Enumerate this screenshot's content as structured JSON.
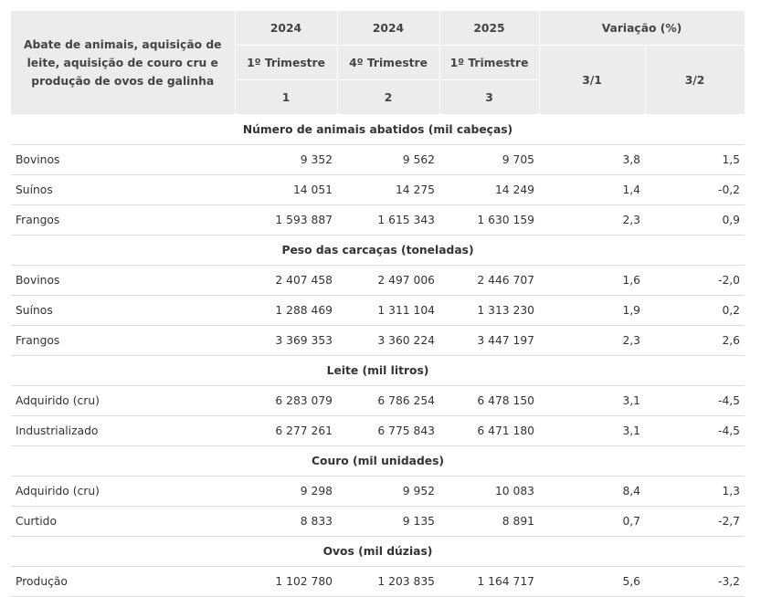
{
  "header": {
    "stub": "Abate de animais, aquisição de leite, aquisição de couro cru e produção de ovos de galinha",
    "years": [
      "2024",
      "2024",
      "2025"
    ],
    "variation_title": "Variação (%)",
    "quarters": [
      "1º Trimestre",
      "4º Trimestre",
      "1º Trimestre"
    ],
    "indices": [
      "1",
      "2",
      "3"
    ],
    "variation_cols": [
      "3/1",
      "3/2"
    ]
  },
  "sections": [
    {
      "title": "Número de animais abatidos (mil cabeças)",
      "rows": [
        {
          "label": "Bovinos",
          "values": [
            "9 352",
            "9 562",
            "9 705",
            "3,8",
            "1,5"
          ]
        },
        {
          "label": "Suínos",
          "values": [
            "14 051",
            "14 275",
            "14 249",
            "1,4",
            "-0,2"
          ]
        },
        {
          "label": "Frangos",
          "values": [
            "1 593 887",
            "1 615 343",
            "1 630 159",
            "2,3",
            "0,9"
          ]
        }
      ]
    },
    {
      "title": "Peso das carcaças (toneladas)",
      "rows": [
        {
          "label": "Bovinos",
          "values": [
            "2 407 458",
            "2 497 006",
            "2 446 707",
            "1,6",
            "-2,0"
          ]
        },
        {
          "label": "Suínos",
          "values": [
            "1 288 469",
            "1 311 104",
            "1 313 230",
            "1,9",
            "0,2"
          ]
        },
        {
          "label": "Frangos",
          "values": [
            "3 369 353",
            "3 360 224",
            "3 447 197",
            "2,3",
            "2,6"
          ]
        }
      ]
    },
    {
      "title": "Leite (mil litros)",
      "rows": [
        {
          "label": "Adquirido (cru)",
          "values": [
            "6 283 079",
            "6 786 254",
            "6 478 150",
            "3,1",
            "-4,5"
          ]
        },
        {
          "label": "Industrializado",
          "values": [
            "6 277 261",
            "6 775 843",
            "6 471 180",
            "3,1",
            "-4,5"
          ]
        }
      ]
    },
    {
      "title": "Couro (mil unidades)",
      "rows": [
        {
          "label": "Adquirido (cru)",
          "values": [
            "9 298",
            "9 952",
            "10 083",
            "8,4",
            "1,3"
          ]
        },
        {
          "label": "Curtido",
          "values": [
            "8 833",
            "9 135",
            "8 891",
            "0,7",
            "-2,7"
          ]
        }
      ]
    },
    {
      "title": "Ovos (mil dúzias)",
      "rows": [
        {
          "label": "Produção",
          "values": [
            "1 102 780",
            "1 203 835",
            "1 164 717",
            "5,6",
            "-3,2"
          ]
        }
      ]
    }
  ]
}
